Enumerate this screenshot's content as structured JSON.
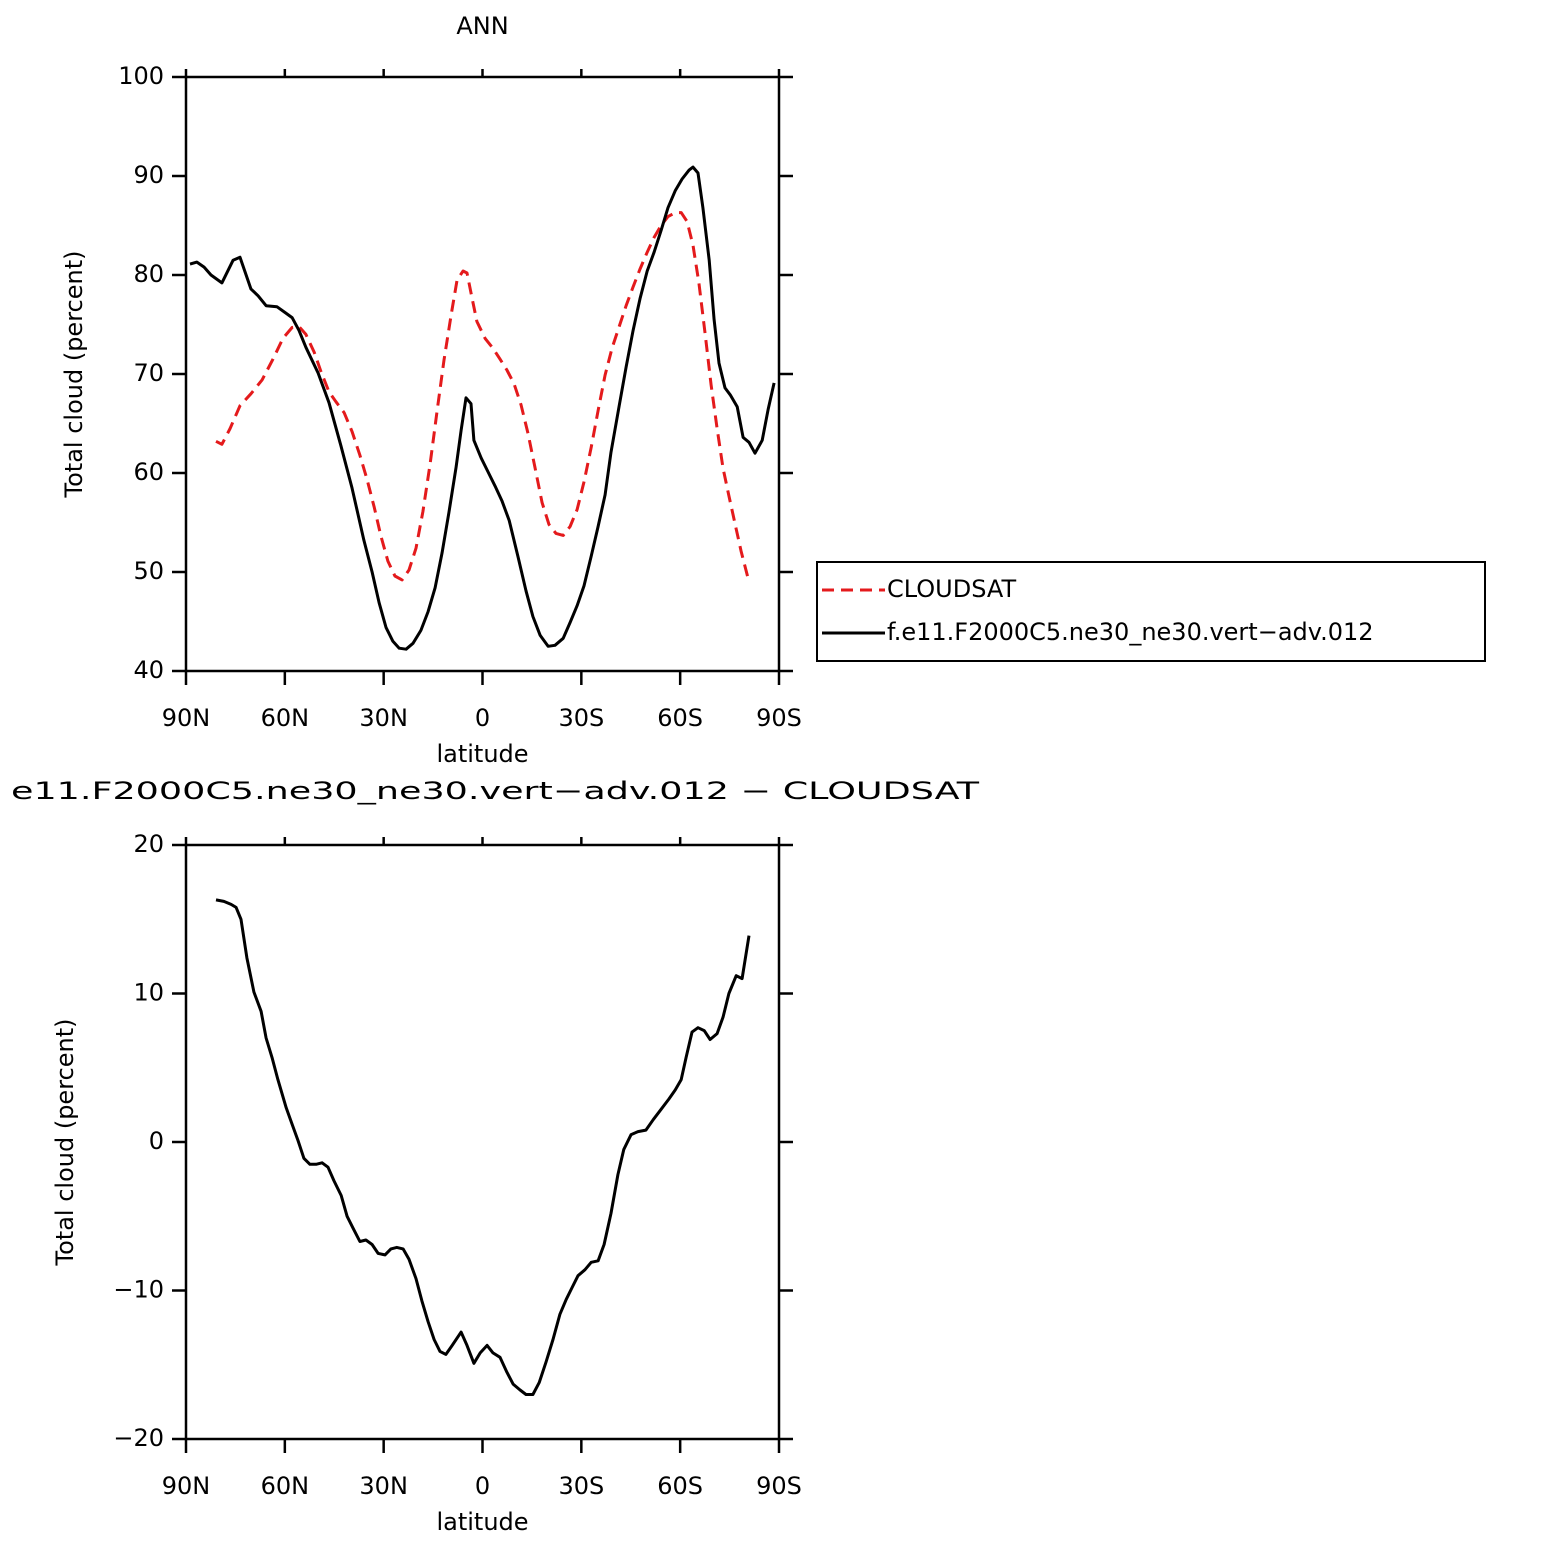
{
  "chart_data": [
    {
      "type": "line",
      "title": "ANN",
      "xlabel": "latitude",
      "ylabel": "Total cloud (percent)",
      "xlim": [
        90,
        -90
      ],
      "ylim": [
        40,
        100
      ],
      "xticks": [
        {
          "value": 90,
          "label": "90N"
        },
        {
          "value": 60,
          "label": "60N"
        },
        {
          "value": 30,
          "label": "30N"
        },
        0,
        {
          "value": -30,
          "label": "30S"
        },
        {
          "value": -60,
          "label": "60S"
        },
        {
          "value": -90,
          "label": "90S"
        }
      ],
      "yticks": [
        40,
        50,
        60,
        70,
        80,
        90,
        100
      ],
      "legend": "right",
      "series": [
        {
          "name": "CLOUDSAT",
          "color": "#e41a1c",
          "dash": true,
          "x": [
            80.9,
            79.1,
            76.6,
            73.6,
            70.3,
            66.9,
            63.6,
            60.6,
            57.8,
            55.7,
            53.6,
            51.1,
            49.0,
            46.6,
            44.5,
            42.0,
            39.6,
            37.2,
            35.1,
            32.9,
            30.8,
            28.7,
            26.6,
            24.4,
            22.3,
            20.2,
            18.1,
            15.9,
            13.8,
            11.7,
            9.5,
            7.7,
            5.9,
            4.7,
            3.2,
            1.7,
            -0.8,
            -3.2,
            -5.3,
            -7.4,
            -9.6,
            -11.7,
            -13.8,
            -15.9,
            -18.1,
            -20.2,
            -22.3,
            -24.5,
            -26.6,
            -28.7,
            -30.8,
            -33.0,
            -35.1,
            -37.2,
            -39.3,
            -41.5,
            -43.6,
            -45.7,
            -47.8,
            -50.0,
            -52.1,
            -54.2,
            -56.3,
            -58.5,
            -60.3,
            -62.1,
            -63.9,
            -65.7,
            -67.6,
            -69.4,
            -71.2,
            -73.0,
            -74.8,
            -76.7,
            -78.5,
            -80.9
          ],
          "values": [
            63.2,
            62.9,
            64.5,
            66.8,
            68.0,
            69.4,
            71.5,
            73.6,
            74.7,
            74.8,
            74.0,
            72.2,
            70.2,
            68.2,
            67.2,
            66.1,
            64.2,
            61.8,
            59.4,
            56.6,
            53.6,
            51.1,
            49.6,
            49.2,
            50.2,
            52.4,
            56.1,
            60.9,
            66.2,
            71.4,
            76.0,
            79.5,
            80.4,
            80.2,
            77.7,
            75.3,
            73.6,
            72.6,
            71.5,
            70.4,
            69.0,
            66.9,
            64.0,
            60.6,
            57.0,
            54.8,
            53.9,
            53.7,
            54.6,
            56.3,
            59.1,
            62.6,
            66.3,
            69.9,
            72.6,
            74.8,
            76.9,
            78.8,
            80.6,
            82.3,
            83.8,
            85.0,
            85.9,
            86.3,
            86.3,
            85.4,
            83.0,
            79.2,
            74.0,
            68.9,
            64.5,
            60.5,
            57.7,
            54.8,
            52.1,
            49.0
          ]
        },
        {
          "name": "f.e11.F2000C5.ne30_ne30.vert−adv.012",
          "color": "#000000",
          "dash": false,
          "x": [
            88.8,
            86.7,
            84.5,
            82.4,
            79.1,
            75.7,
            73.6,
            70.3,
            68.1,
            65.7,
            62.4,
            59.9,
            57.8,
            55.7,
            53.6,
            49.9,
            46.6,
            43.0,
            39.6,
            36.0,
            33.5,
            31.4,
            29.3,
            27.2,
            25.3,
            23.2,
            21.1,
            18.7,
            16.5,
            14.4,
            12.3,
            10.2,
            8.0,
            6.5,
            5.0,
            3.5,
            2.6,
            0.4,
            -1.7,
            -3.8,
            -5.9,
            -8.1,
            -10.8,
            -13.2,
            -15.3,
            -17.5,
            -19.9,
            -22.0,
            -24.5,
            -26.6,
            -28.7,
            -30.8,
            -33.0,
            -35.1,
            -37.2,
            -39.0,
            -41.5,
            -43.6,
            -45.7,
            -47.8,
            -50.0,
            -52.1,
            -54.2,
            -56.3,
            -58.5,
            -60.6,
            -62.7,
            -63.9,
            -65.4,
            -66.9,
            -68.8,
            -70.3,
            -71.8,
            -73.6,
            -75.2,
            -77.3,
            -79.1,
            -80.9,
            -82.7,
            -84.9,
            -86.7,
            -88.5
          ],
          "values": [
            81.1,
            81.3,
            80.8,
            80.0,
            79.2,
            81.5,
            81.8,
            78.6,
            77.9,
            76.9,
            76.8,
            76.2,
            75.7,
            74.4,
            72.7,
            70.1,
            67.1,
            62.8,
            58.5,
            53.2,
            50.0,
            46.9,
            44.4,
            43.0,
            42.3,
            42.2,
            42.8,
            44.1,
            46.0,
            48.4,
            51.9,
            56.0,
            60.6,
            64.3,
            67.6,
            67.0,
            63.3,
            61.5,
            60.1,
            58.7,
            57.2,
            55.2,
            51.5,
            48.1,
            45.5,
            43.6,
            42.5,
            42.6,
            43.3,
            44.9,
            46.6,
            48.6,
            51.6,
            54.6,
            57.8,
            62.1,
            66.8,
            70.7,
            74.4,
            77.6,
            80.4,
            82.3,
            84.5,
            86.8,
            88.5,
            89.7,
            90.6,
            90.9,
            90.3,
            86.8,
            81.5,
            75.5,
            71.1,
            68.6,
            67.9,
            66.7,
            63.6,
            63.1,
            62.0,
            63.3,
            66.4,
            69.1
          ]
        }
      ]
    },
    {
      "type": "line",
      "title": "e11.F2000C5.ne30_ne30.vert−adv.012 − CLOUDSAT",
      "xlabel": "latitude",
      "ylabel": "Total cloud (percent)",
      "xlim": [
        90,
        -90
      ],
      "ylim": [
        -20,
        20
      ],
      "xticks": [
        {
          "value": 90,
          "label": "90N"
        },
        {
          "value": 60,
          "label": "60N"
        },
        {
          "value": 30,
          "label": "30N"
        },
        0,
        {
          "value": -30,
          "label": "30S"
        },
        {
          "value": -60,
          "label": "60S"
        },
        {
          "value": -90,
          "label": "90S"
        }
      ],
      "yticks": [
        {
          "value": -20,
          "label": "−20"
        },
        {
          "value": -10,
          "label": "−10"
        },
        0,
        10,
        20
      ],
      "series": [
        {
          "color": "#000000",
          "dash": false,
          "x": [
            80.9,
            78.5,
            76.3,
            74.8,
            73.3,
            71.5,
            69.4,
            67.2,
            65.7,
            63.9,
            62.1,
            59.6,
            57.8,
            56.0,
            54.2,
            52.4,
            50.5,
            48.7,
            46.9,
            45.1,
            42.9,
            41.1,
            39.3,
            37.2,
            35.4,
            33.5,
            31.7,
            29.6,
            27.8,
            26.0,
            24.1,
            22.3,
            20.2,
            18.4,
            16.5,
            14.7,
            12.9,
            11.1,
            9.2,
            6.5,
            4.7,
            2.6,
            0.7,
            -1.4,
            -3.2,
            -5.3,
            -7.4,
            -9.3,
            -11.4,
            -13.2,
            -15.3,
            -17.2,
            -19.3,
            -21.4,
            -23.5,
            -25.4,
            -27.2,
            -29.0,
            -31.1,
            -33.0,
            -35.1,
            -36.9,
            -39.0,
            -41.1,
            -42.9,
            -45.1,
            -47.2,
            -49.6,
            -51.8,
            -54.2,
            -56.6,
            -58.5,
            -60.3,
            -61.8,
            -63.6,
            -65.4,
            -67.3,
            -69.1,
            -71.2,
            -73.0,
            -74.8,
            -77.0,
            -78.8,
            -80.9
          ],
          "values": [
            16.3,
            16.2,
            16.0,
            15.8,
            15.0,
            12.4,
            10.1,
            8.8,
            7.0,
            5.7,
            4.2,
            2.3,
            1.2,
            0.1,
            -1.1,
            -1.5,
            -1.5,
            -1.4,
            -1.7,
            -2.6,
            -3.6,
            -5.0,
            -5.8,
            -6.7,
            -6.6,
            -6.9,
            -7.5,
            -7.6,
            -7.2,
            -7.1,
            -7.2,
            -7.9,
            -9.2,
            -10.7,
            -12.1,
            -13.3,
            -14.1,
            -14.3,
            -13.7,
            -12.8,
            -13.7,
            -14.9,
            -14.2,
            -13.7,
            -14.2,
            -14.5,
            -15.5,
            -16.3,
            -16.7,
            -17.0,
            -17.0,
            -16.2,
            -14.8,
            -13.3,
            -11.6,
            -10.6,
            -9.8,
            -9.0,
            -8.6,
            -8.1,
            -8.0,
            -6.9,
            -4.8,
            -2.2,
            -0.5,
            0.5,
            0.7,
            0.8,
            1.5,
            2.2,
            2.9,
            3.5,
            4.2,
            5.7,
            7.4,
            7.7,
            7.5,
            6.9,
            7.3,
            8.4,
            10.0,
            11.2,
            11.0,
            13.9
          ]
        }
      ]
    }
  ]
}
